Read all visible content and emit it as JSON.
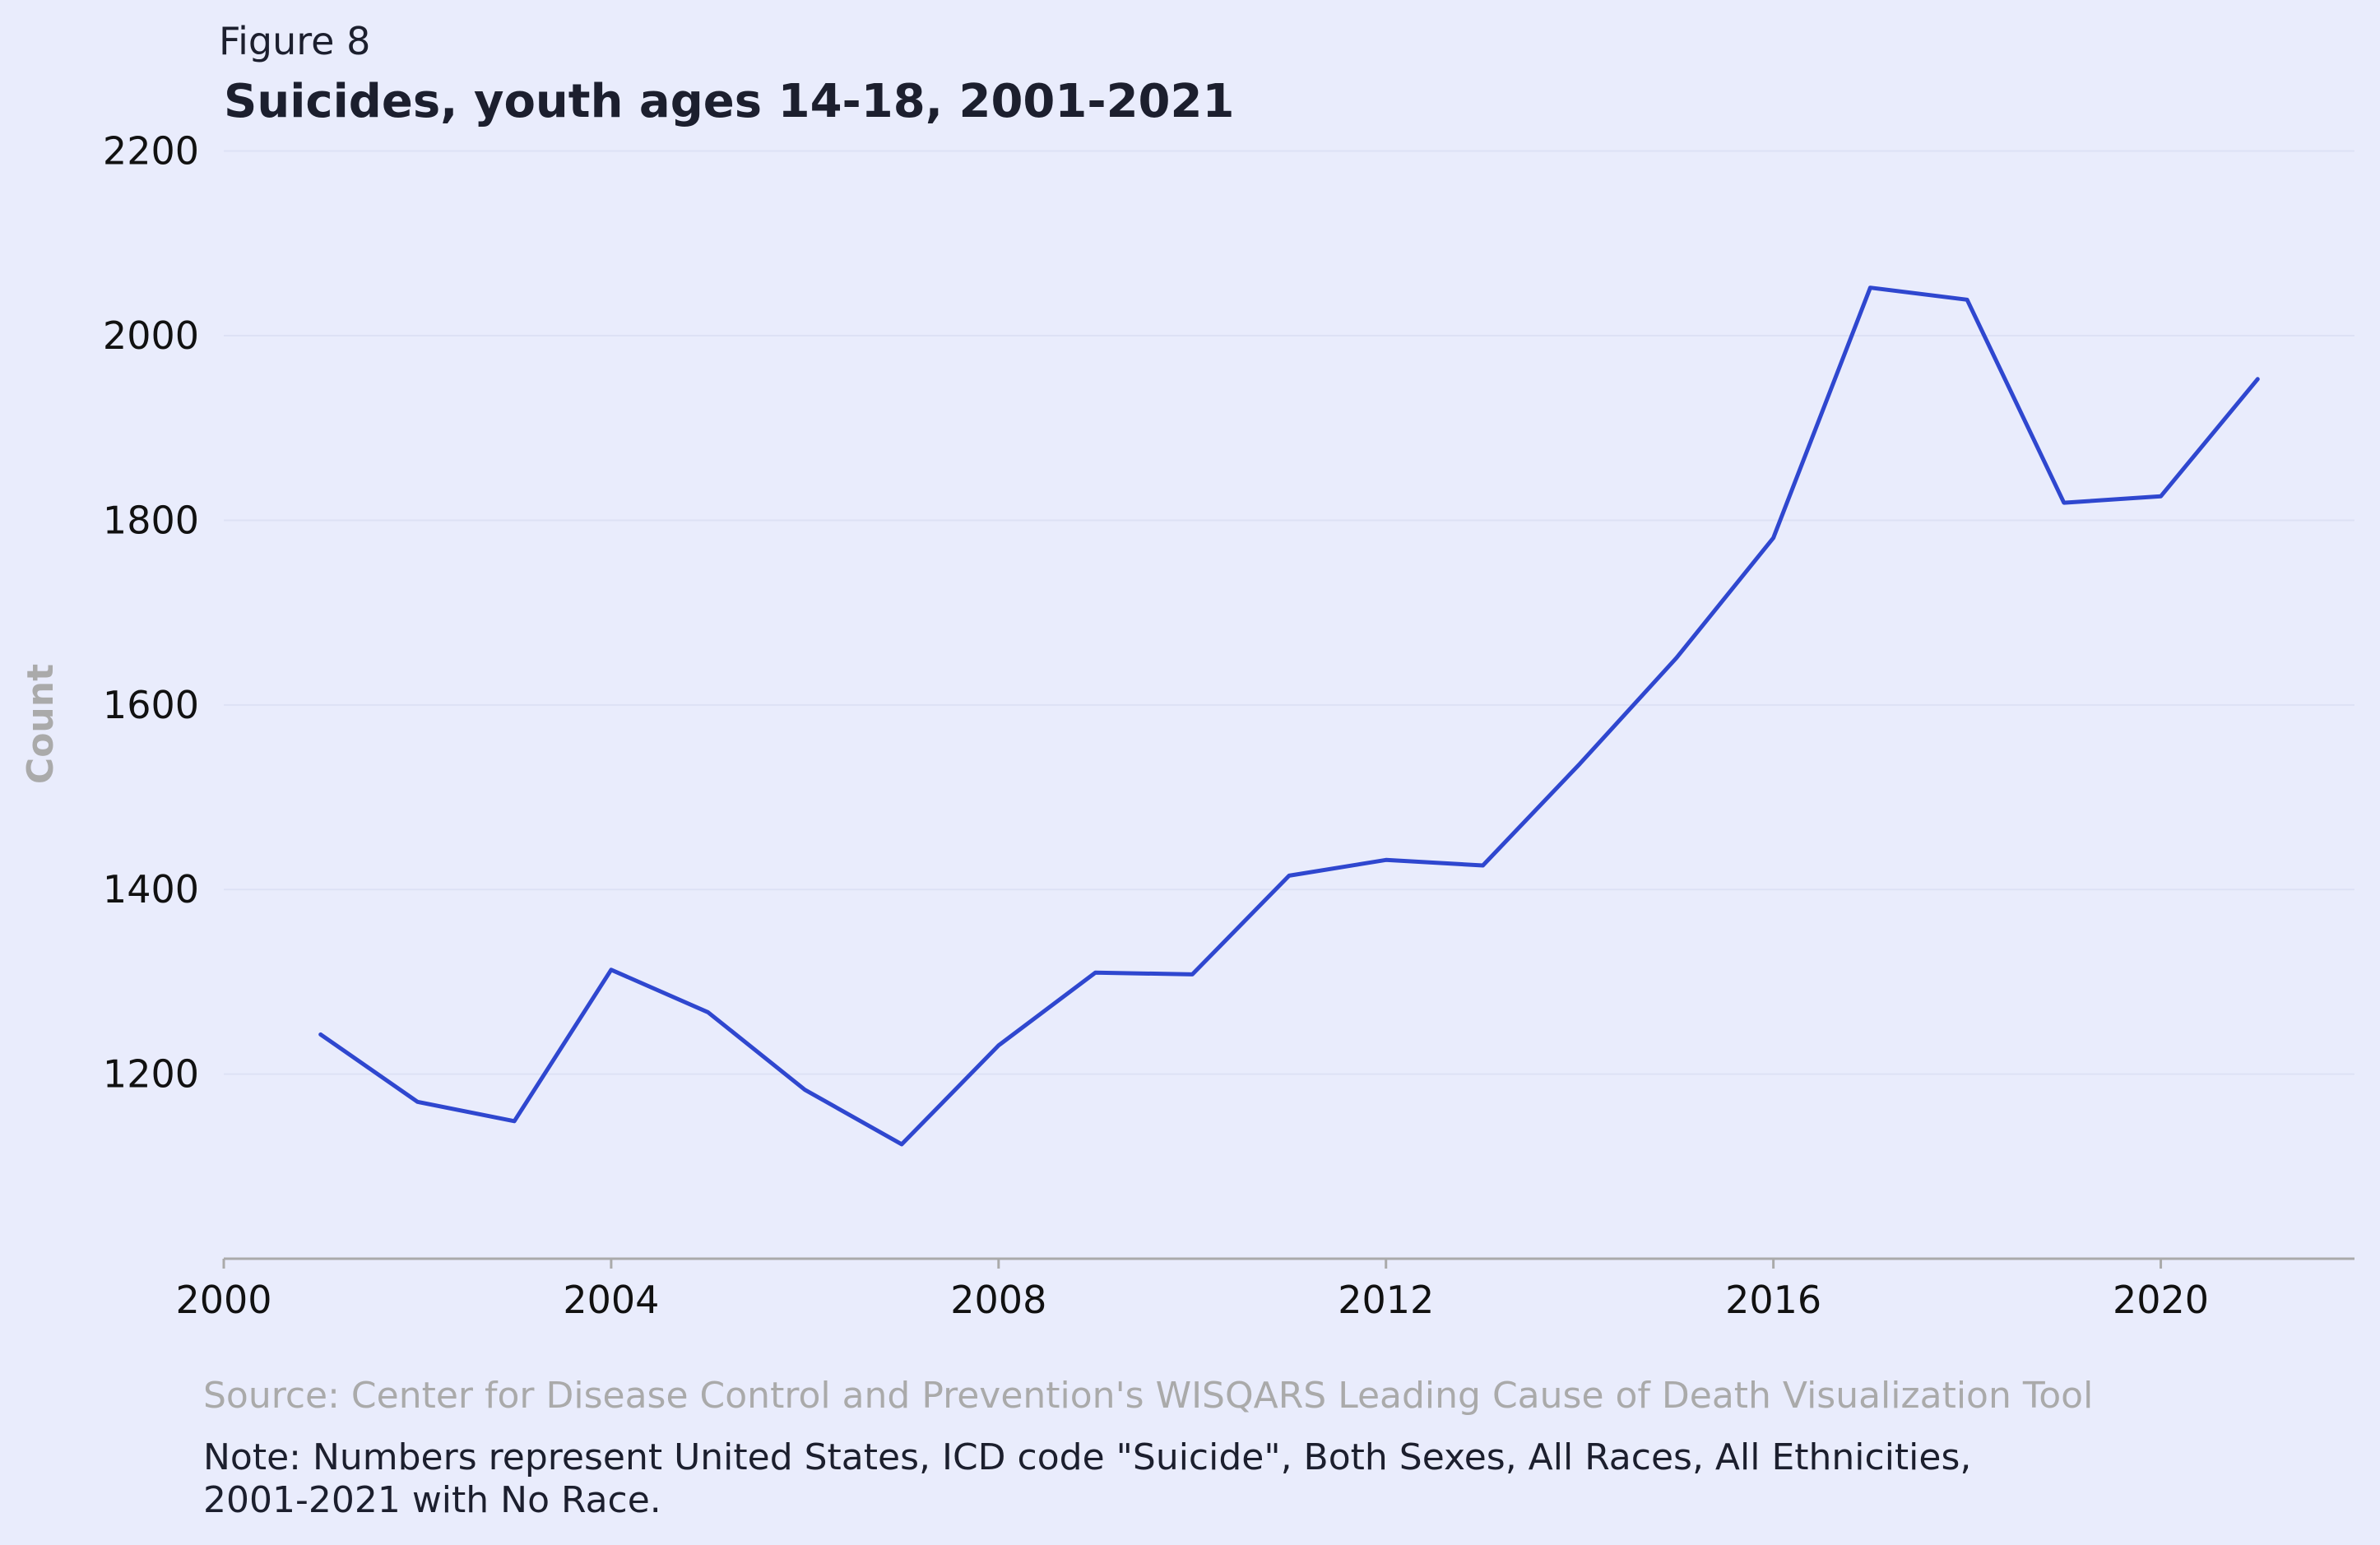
{
  "figure_label": "Figure 8",
  "chart_data": {
    "type": "line",
    "title": "Suicides, youth ages 14-18, 2001-2021",
    "xlabel": "",
    "ylabel": "Count",
    "xlim": [
      2000,
      2022
    ],
    "ylim": [
      1000,
      2230
    ],
    "x_ticks": [
      2000,
      2004,
      2008,
      2012,
      2016,
      2020
    ],
    "y_ticks": [
      1200,
      1400,
      1600,
      1800,
      2000,
      2200
    ],
    "grid": "horizontal",
    "line_color": "#2f47cf",
    "series": [
      {
        "x": [
          2001,
          2002,
          2003,
          2004,
          2005,
          2006,
          2007,
          2008,
          2009,
          2010,
          2011,
          2012,
          2013,
          2014,
          2015,
          2016,
          2017,
          2018,
          2019,
          2020,
          2021
        ],
        "values": [
          1243,
          1170,
          1149,
          1313,
          1267,
          1183,
          1124,
          1231,
          1310,
          1308,
          1415,
          1432,
          1426,
          1536,
          1651,
          1781,
          2052,
          2039,
          1819,
          1826,
          1953
        ]
      }
    ]
  },
  "source": "Source: Center for Disease Control and Prevention's WISQARS Leading Cause of Death Visualization Tool",
  "note": [
    "Note: Numbers represent United States, ICD code \"Suicide\", Both Sexes, All Races, All Ethnicities,",
    "2001-2021 with No Race."
  ]
}
